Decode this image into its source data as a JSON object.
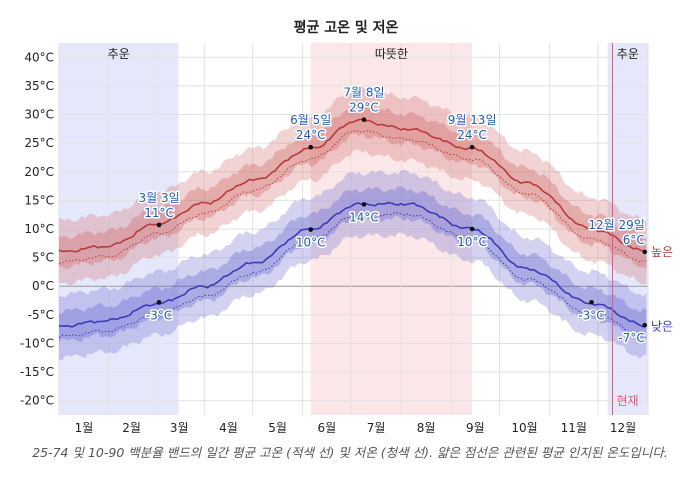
{
  "chart_data": {
    "type": "area",
    "title": "평균 고온 및 저온",
    "caption": "25-74 및 10-90 백분율 밴드의 일간 평균 고온 (적색 선) 및 저온 (청색 선). 얇은 점선은 관련된 평균 인지된 온도입니다.",
    "x_ticks": [
      "1월",
      "2월",
      "3월",
      "4월",
      "5월",
      "6월",
      "7월",
      "8월",
      "9월",
      "10월",
      "11월",
      "12월"
    ],
    "y_ticks": [
      "40°C",
      "35°C",
      "30°C",
      "25°C",
      "20°C",
      "15°C",
      "10°C",
      "5°C",
      "0°C",
      "-5°C",
      "-10°C",
      "-15°C",
      "-20°C"
    ],
    "ylim": [
      -22.5,
      42.5
    ],
    "xlim": [
      0,
      365
    ],
    "seasons": [
      {
        "label": "추운",
        "start_day": 0,
        "end_day": 74,
        "kind": "cold"
      },
      {
        "label": "따뜻한",
        "start_day": 156,
        "end_day": 256,
        "kind": "warm"
      },
      {
        "label": "추운",
        "start_day": 340,
        "end_day": 365,
        "kind": "cold"
      }
    ],
    "now_label": "현재",
    "now_day": 343,
    "series": [
      {
        "name": "높은",
        "color": "#b83b3b",
        "kind": "high",
        "points": [
          [
            0,
            6
          ],
          [
            30,
            7
          ],
          [
            62,
            11
          ],
          [
            90,
            14.5
          ],
          [
            120,
            18.5
          ],
          [
            156,
            24
          ],
          [
            185,
            29
          ],
          [
            215,
            27.5
          ],
          [
            256,
            24
          ],
          [
            290,
            18
          ],
          [
            330,
            10
          ],
          [
            365,
            6
          ]
        ]
      },
      {
        "name": "낮은",
        "color": "#3b3bb8",
        "kind": "low",
        "points": [
          [
            0,
            -7
          ],
          [
            30,
            -6
          ],
          [
            62,
            -3
          ],
          [
            90,
            0
          ],
          [
            120,
            4
          ],
          [
            156,
            10
          ],
          [
            185,
            14.3
          ],
          [
            215,
            14.4
          ],
          [
            256,
            10
          ],
          [
            290,
            3
          ],
          [
            330,
            -3
          ],
          [
            365,
            -7
          ]
        ]
      }
    ],
    "annotations": [
      {
        "date": "3월 3일",
        "value": "11°C",
        "day": 62,
        "temp": 10.7,
        "position": "above"
      },
      {
        "date": "6월 5일",
        "value": "24°C",
        "day": 156,
        "temp": 24.3,
        "position": "above"
      },
      {
        "date": "7월 8일",
        "value": "29°C",
        "day": 189,
        "temp": 29.1,
        "position": "above"
      },
      {
        "date": "9월 13일",
        "value": "24°C",
        "day": 256,
        "temp": 24.3,
        "position": "above"
      },
      {
        "date": "12월 29일",
        "value": "6°C",
        "day": 363,
        "temp": 6.0,
        "position": "above"
      },
      {
        "date": "",
        "value": "-3°C",
        "day": 62,
        "temp": -2.8,
        "position": "below"
      },
      {
        "date": "",
        "value": "10°C",
        "day": 156,
        "temp": 9.9,
        "position": "below"
      },
      {
        "date": "",
        "value": "14°C",
        "day": 189,
        "temp": 14.3,
        "position": "below"
      },
      {
        "date": "",
        "value": "10°C",
        "day": 256,
        "temp": 10.0,
        "position": "below"
      },
      {
        "date": "",
        "value": "-3°C",
        "day": 330,
        "temp": -2.8,
        "position": "below"
      },
      {
        "date": "",
        "value": "-7°C",
        "day": 363,
        "temp": -6.8,
        "position": "below"
      }
    ],
    "legend": [
      "높은",
      "낮은"
    ]
  }
}
